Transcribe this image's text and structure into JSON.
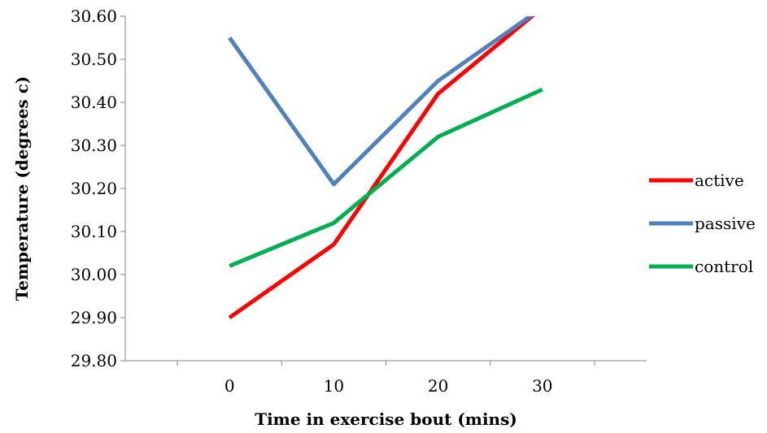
{
  "chart_data": {
    "type": "line",
    "title": "",
    "xlabel": "Time in exercise bout (mins)",
    "ylabel": "Temperature (degrees c)",
    "categories": [
      "0",
      "10",
      "20",
      "30"
    ],
    "ylim": [
      29.8,
      30.6
    ],
    "yticks": [
      "29.80",
      "29.90",
      "30.00",
      "30.10",
      "30.20",
      "30.30",
      "30.40",
      "30.50",
      "30.60"
    ],
    "grid": false,
    "legend_position": "right",
    "series": [
      {
        "name": "active",
        "color": "#ff0000",
        "values": [
          29.9,
          30.07,
          30.42,
          30.62
        ]
      },
      {
        "name": "passive",
        "color": "#4f81bd",
        "values": [
          30.55,
          30.21,
          30.45,
          30.62
        ]
      },
      {
        "name": "control",
        "color": "#00b050",
        "values": [
          30.02,
          30.12,
          30.32,
          30.43
        ]
      }
    ]
  }
}
